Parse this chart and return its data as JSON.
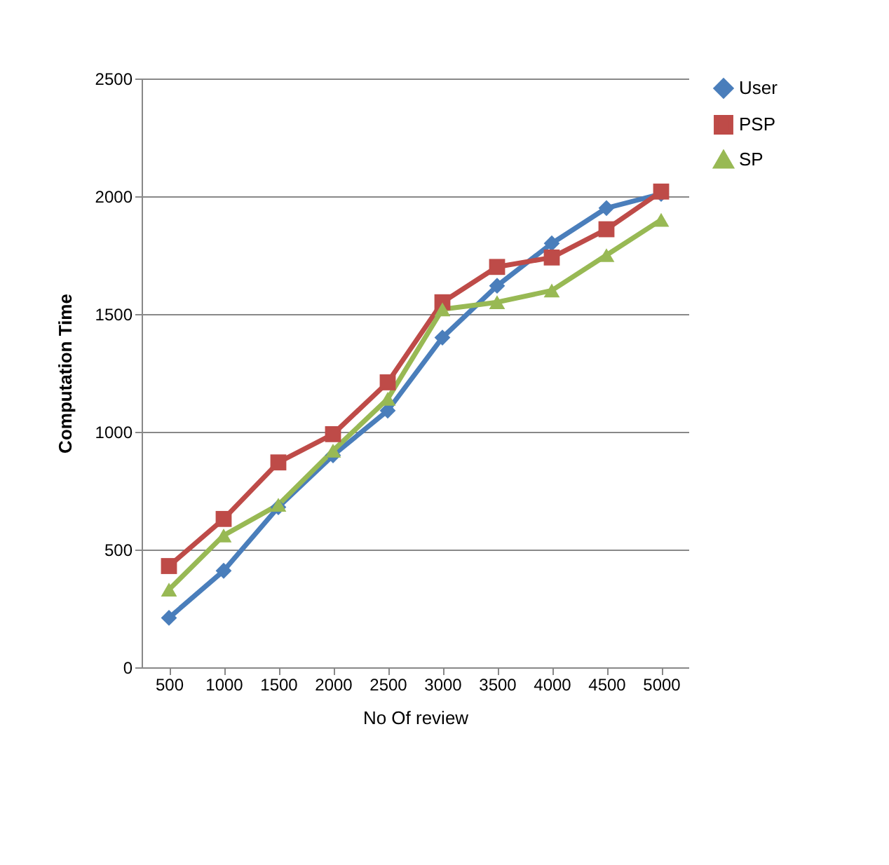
{
  "chart_data": {
    "type": "line",
    "xlabel": "No Of review",
    "ylabel": "Computation Time",
    "categories": [
      "500",
      "1000",
      "1500",
      "2000",
      "2500",
      "3000",
      "3500",
      "4000",
      "4500",
      "5000"
    ],
    "series": [
      {
        "name": "User",
        "color": "#4a7ebb",
        "marker": "diamond",
        "values": [
          210,
          410,
          680,
          900,
          1090,
          1400,
          1620,
          1800,
          1950,
          2010
        ]
      },
      {
        "name": "PSP",
        "color": "#be4b48",
        "marker": "square",
        "values": [
          430,
          630,
          870,
          990,
          1210,
          1550,
          1700,
          1740,
          1860,
          2020
        ]
      },
      {
        "name": "SP",
        "color": "#98b954",
        "marker": "triangle",
        "values": [
          330,
          560,
          690,
          920,
          1140,
          1520,
          1550,
          1600,
          1750,
          1900
        ]
      }
    ],
    "ylim": [
      0,
      2500
    ],
    "yticks": [
      0,
      500,
      1000,
      1500,
      2000,
      2500
    ],
    "grid": "y",
    "legend": "right",
    "line_style": "solid"
  }
}
